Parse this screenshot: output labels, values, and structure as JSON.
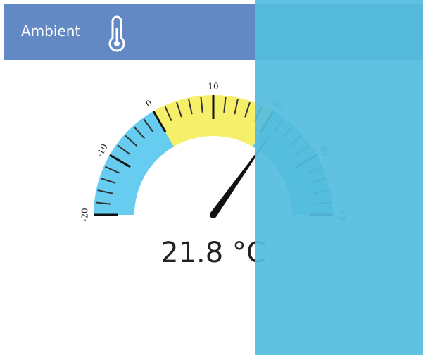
{
  "header": {
    "title": "Ambient"
  },
  "gauge": {
    "min": -20,
    "max": 40,
    "value": 21.8,
    "unit": "°C",
    "ticks": [
      -20,
      -10,
      0,
      10,
      20,
      30,
      40
    ],
    "minor_ticks": [
      -18,
      -16,
      -14,
      -12,
      -8,
      -6,
      -4,
      -2,
      2,
      4,
      6,
      8,
      12,
      14,
      16,
      18,
      22,
      24,
      26,
      28,
      32,
      34,
      36,
      38
    ],
    "bands": [
      {
        "from": -20,
        "to": 0,
        "color": "#66ccf0"
      },
      {
        "from": 0,
        "to": 20,
        "color": "#f6ef6a"
      },
      {
        "from": 20,
        "to": 40,
        "color": "#66ccf0"
      }
    ]
  }
}
